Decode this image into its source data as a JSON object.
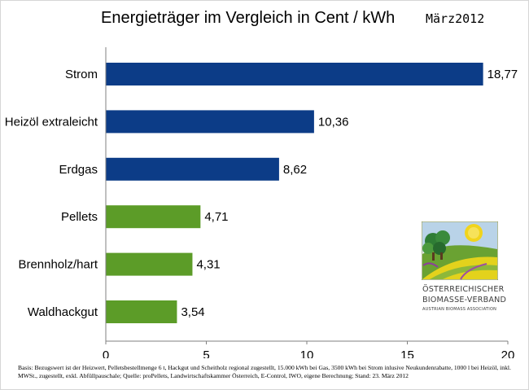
{
  "header": {
    "title": "Energieträger im Vergleich in Cent / kWh",
    "date": "März2012"
  },
  "chart_data": {
    "type": "bar",
    "orientation": "horizontal",
    "title": "Energieträger im Vergleich in Cent / kWh",
    "xlabel": "",
    "ylabel": "",
    "categories": [
      "Strom",
      "Heizöl extraleicht",
      "Erdgas",
      "Pellets",
      "Brennholz/hart",
      "Waldhackgut"
    ],
    "values": [
      18.77,
      10.36,
      8.62,
      4.71,
      4.31,
      3.54
    ],
    "value_labels": [
      "18,77",
      "10,36",
      "8,62",
      "4,71",
      "4,31",
      "3,54"
    ],
    "bar_colors": [
      "#0c3c87",
      "#0c3c87",
      "#0c3c87",
      "#5c9c28",
      "#5c9c28",
      "#5c9c28"
    ],
    "xlim": [
      0,
      20
    ],
    "x_ticks": [
      0,
      5,
      10,
      15,
      20
    ],
    "x_tick_labels": [
      "0",
      "5",
      "10",
      "15",
      "20"
    ],
    "grid": false,
    "legend": "none"
  },
  "logo": {
    "line1": "ÖSTERREICHISCHER",
    "line2": "BIOMASSE-VERBAND",
    "line3": "AUSTRIAN BIOMASS ASSOCIATION"
  },
  "footnote": {
    "text": "Basis: Bezugswert ist der Heizwert, Pelletsbestellmenge 6 t, Hackgut und Scheitholz regional zugestellt, 15.000 kWh bei Gas, 3500 kWh bei Strom inlusive Neukundenrabatte, 1000 l bei Heizöl, inkl. MWSt., zugestellt, exkl. Abfüllpauschale; Quelle: proPellets, Landwirtschaftskammer Österreich, E-Control, IWO, eigene Berechnung; Stand: 23. März 2012"
  }
}
